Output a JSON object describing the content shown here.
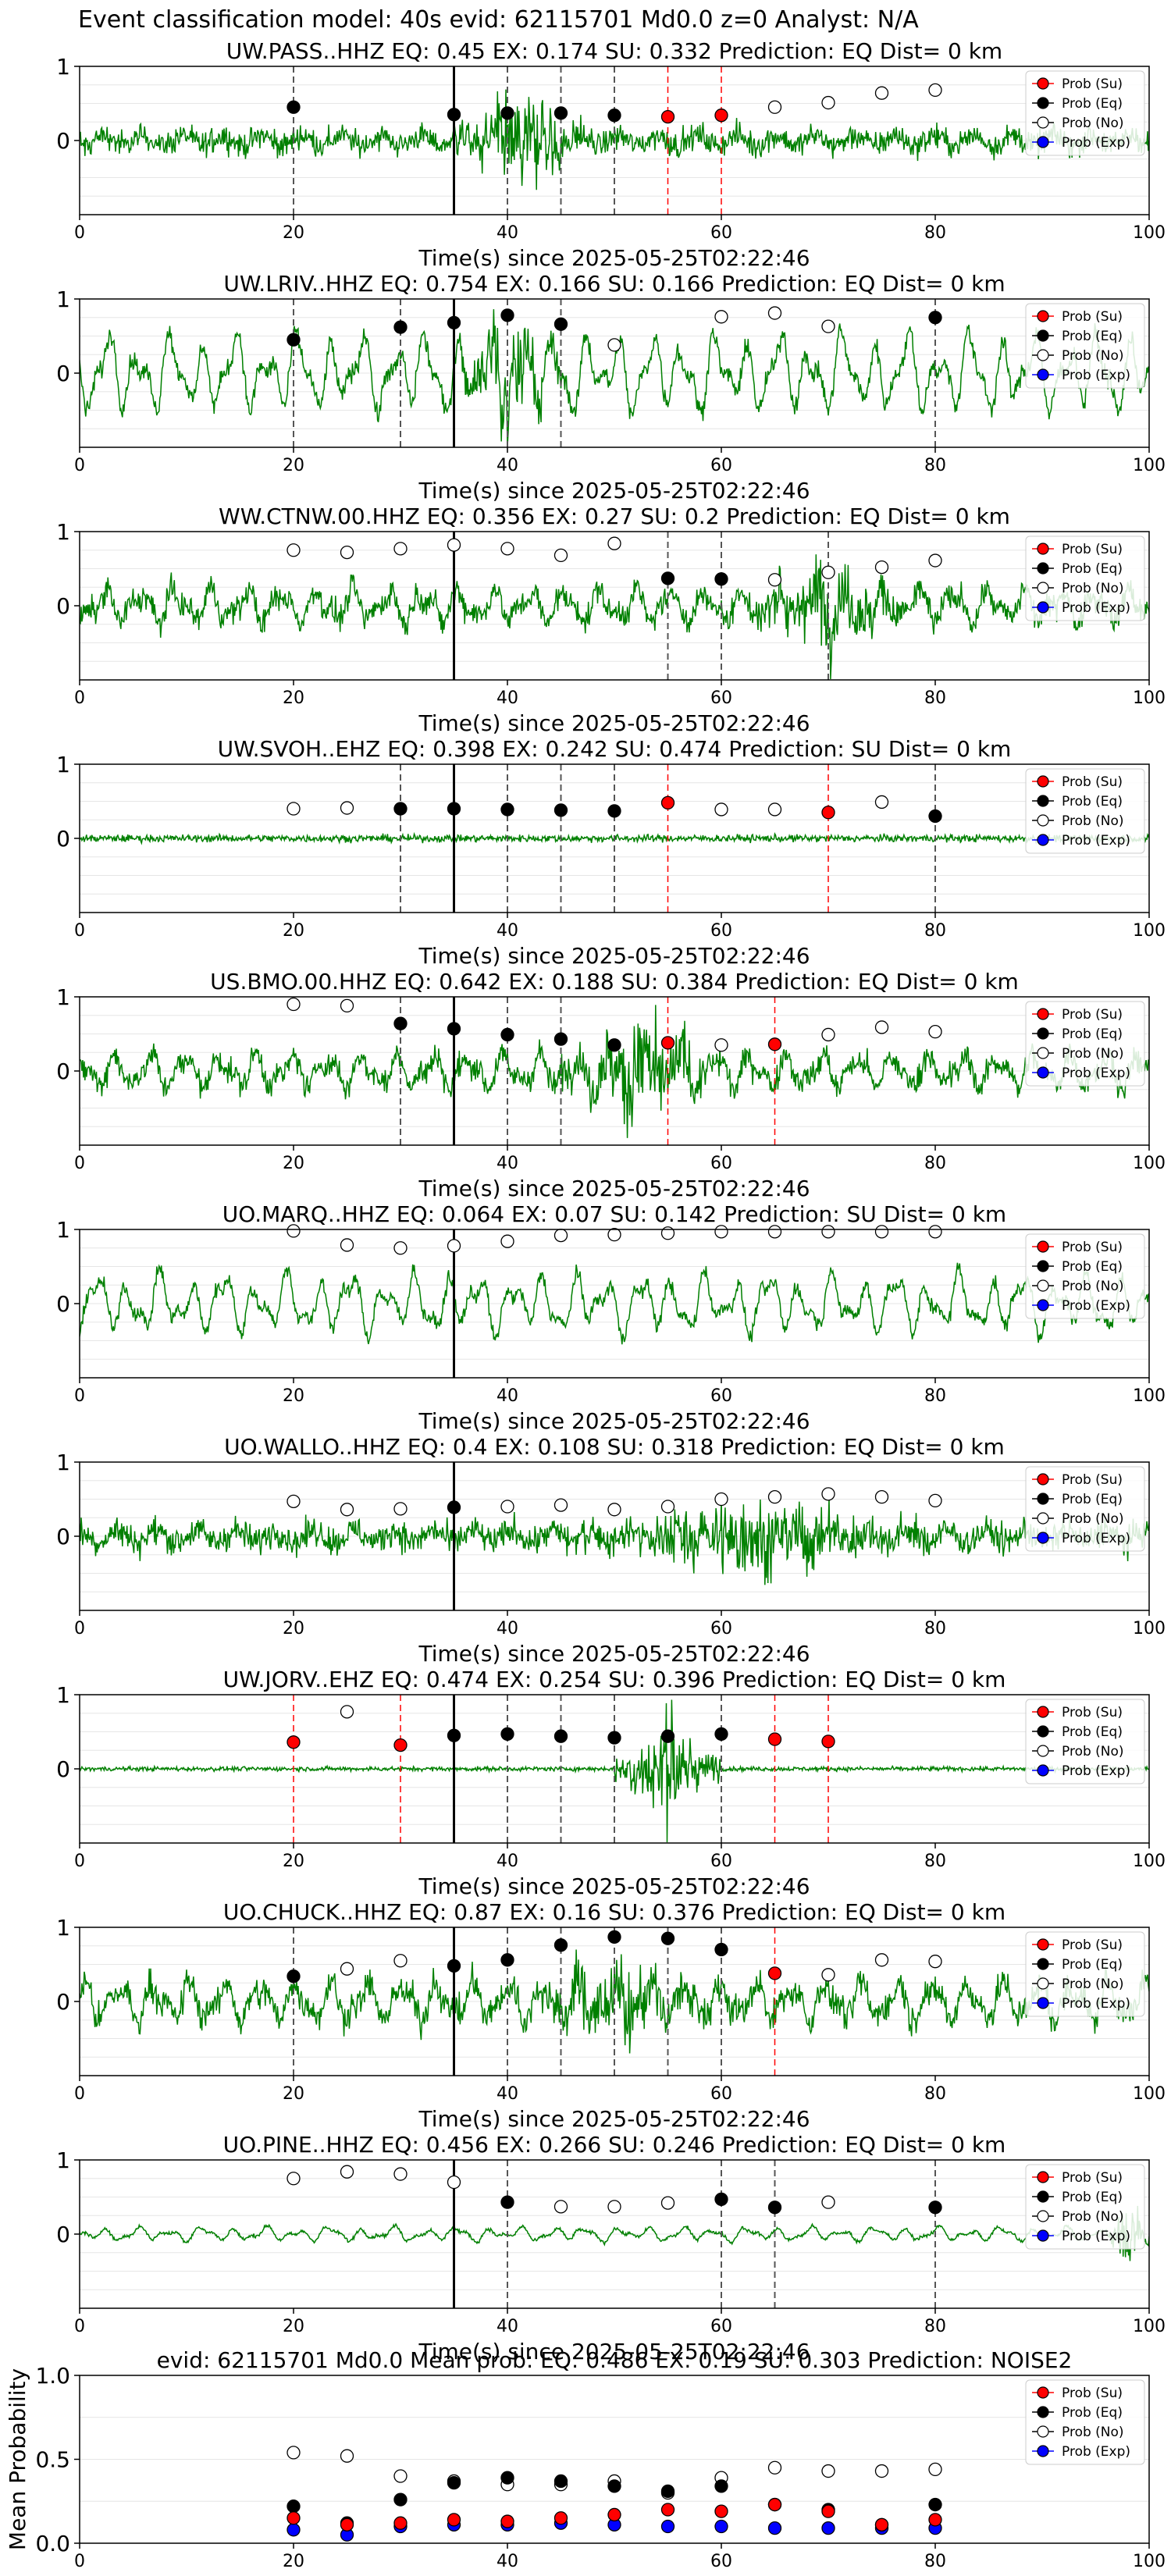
{
  "figure": {
    "title": "Event classification model: 40s evid: 62115701 Md0.0 z=0 Analyst: N/A"
  },
  "legend": {
    "entries": [
      {
        "name": "Prob (Su)",
        "color": "#ff0000",
        "filled": true
      },
      {
        "name": "Prob (Eq)",
        "color": "#000000",
        "filled": true
      },
      {
        "name": "Prob (No)",
        "color": "#ffffff",
        "filled": false
      },
      {
        "name": "Prob (Exp)",
        "color": "#0000ff",
        "filled": true
      }
    ]
  },
  "colors": {
    "waveform": "#008000",
    "su_line": "#ff0000",
    "eq_line": "#555555",
    "origin_line": "#000000"
  },
  "chart_data": [
    {
      "type": "line",
      "title": "UW.PASS..HHZ   EQ: 0.45  EX: 0.174  SU: 0.332   Prediction: EQ    Dist= 0 km",
      "xlabel": "Time(s) since 2025-05-25T02:22:46",
      "xlim": [
        0,
        100
      ],
      "ylim": [
        -1,
        1
      ],
      "xticks": [
        0,
        20,
        40,
        60,
        80,
        100
      ],
      "yticks": [
        0,
        1
      ],
      "legend_position": "top-right",
      "waveform": {
        "style": "noisy",
        "amp": 0.22,
        "burst": [
          35,
          48,
          0.85
        ]
      },
      "origin_time": 35,
      "eq_lines": [
        20,
        40,
        45,
        50
      ],
      "su_lines": [
        55,
        60
      ],
      "eq_points": [
        [
          20,
          0.45
        ],
        [
          35,
          0.35
        ],
        [
          40,
          0.37
        ],
        [
          45,
          0.37
        ],
        [
          50,
          0.34
        ]
      ],
      "su_points": [
        [
          55,
          0.32
        ],
        [
          60,
          0.34
        ]
      ],
      "no_points": [
        [
          65,
          0.45
        ],
        [
          70,
          0.51
        ],
        [
          75,
          0.64
        ],
        [
          80,
          0.68
        ]
      ],
      "exp_points": []
    },
    {
      "type": "line",
      "title": "UW.LRIV..HHZ   EQ: 0.754  EX: 0.166  SU: 0.166   Prediction: EQ    Dist= 0 km",
      "xlabel": "Time(s) since 2025-05-25T02:22:46",
      "xlim": [
        0,
        100
      ],
      "ylim": [
        -1,
        1
      ],
      "xticks": [
        0,
        20,
        40,
        60,
        80,
        100
      ],
      "yticks": [
        0,
        1
      ],
      "legend_position": "top-right",
      "waveform": {
        "style": "smooth",
        "amp": 0.55,
        "burst": [
          35,
          45,
          0.8
        ]
      },
      "origin_time": 35,
      "eq_lines": [
        20,
        30,
        40,
        45,
        80
      ],
      "su_lines": [],
      "eq_points": [
        [
          20,
          0.45
        ],
        [
          30,
          0.62
        ],
        [
          35,
          0.68
        ],
        [
          40,
          0.78
        ],
        [
          45,
          0.66
        ],
        [
          80,
          0.75
        ]
      ],
      "su_points": [],
      "no_points": [
        [
          50,
          0.38
        ],
        [
          60,
          0.76
        ],
        [
          65,
          0.81
        ],
        [
          70,
          0.63
        ]
      ],
      "exp_points": []
    },
    {
      "type": "line",
      "title": "WW.CTNW.00.HHZ   EQ: 0.356  EX: 0.27  SU: 0.2   Prediction: EQ    Dist= 0 km",
      "xlabel": "Time(s) since 2025-05-25T02:22:46",
      "xlim": [
        0,
        100
      ],
      "ylim": [
        -1,
        1
      ],
      "xticks": [
        0,
        20,
        40,
        60,
        80,
        100
      ],
      "yticks": [
        0,
        1
      ],
      "legend_position": "top-right",
      "waveform": {
        "style": "mixed",
        "amp": 0.3,
        "burst": [
          60,
          80,
          0.65
        ]
      },
      "origin_time": 35,
      "eq_lines": [
        55,
        60,
        70
      ],
      "su_lines": [],
      "eq_points": [
        [
          55,
          0.37
        ],
        [
          60,
          0.36
        ]
      ],
      "su_points": [],
      "no_points": [
        [
          20,
          0.75
        ],
        [
          25,
          0.72
        ],
        [
          30,
          0.77
        ],
        [
          35,
          0.82
        ],
        [
          40,
          0.77
        ],
        [
          45,
          0.68
        ],
        [
          50,
          0.84
        ],
        [
          65,
          0.35
        ],
        [
          70,
          0.45
        ],
        [
          75,
          0.52
        ],
        [
          80,
          0.61
        ]
      ],
      "exp_points": []
    },
    {
      "type": "line",
      "title": "UW.SVOH..EHZ   EQ: 0.398  EX: 0.242  SU: 0.474   Prediction: SU    Dist= 0 km",
      "xlabel": "Time(s) since 2025-05-25T02:22:46",
      "xlim": [
        0,
        100
      ],
      "ylim": [
        -1,
        1
      ],
      "xticks": [
        0,
        20,
        40,
        60,
        80,
        100
      ],
      "yticks": [
        0,
        1
      ],
      "legend_position": "top-right",
      "waveform": {
        "style": "quiet",
        "amp": 0.05,
        "burst": [
          0,
          0,
          0
        ]
      },
      "origin_time": 35,
      "eq_lines": [
        30,
        40,
        45,
        50,
        80
      ],
      "su_lines": [
        55,
        70
      ],
      "eq_points": [
        [
          30,
          0.4
        ],
        [
          35,
          0.4
        ],
        [
          40,
          0.39
        ],
        [
          45,
          0.38
        ],
        [
          50,
          0.37
        ],
        [
          80,
          0.3
        ]
      ],
      "su_points": [
        [
          55,
          0.48
        ],
        [
          70,
          0.35
        ]
      ],
      "no_points": [
        [
          20,
          0.4
        ],
        [
          25,
          0.41
        ],
        [
          60,
          0.39
        ],
        [
          65,
          0.39
        ],
        [
          75,
          0.49
        ]
      ],
      "exp_points": []
    },
    {
      "type": "line",
      "title": "US.BMO.00.HHZ   EQ: 0.642  EX: 0.188  SU: 0.384   Prediction: EQ    Dist= 0 km",
      "xlabel": "Time(s) since 2025-05-25T02:22:46",
      "xlim": [
        0,
        100
      ],
      "ylim": [
        -1,
        1
      ],
      "xticks": [
        0,
        20,
        40,
        60,
        80,
        100
      ],
      "yticks": [
        0,
        1
      ],
      "legend_position": "top-right",
      "waveform": {
        "style": "mixed",
        "amp": 0.3,
        "burst": [
          45,
          60,
          0.9
        ]
      },
      "origin_time": 35,
      "eq_lines": [
        30,
        40,
        45
      ],
      "su_lines": [
        55,
        65
      ],
      "eq_points": [
        [
          30,
          0.64
        ],
        [
          35,
          0.57
        ],
        [
          40,
          0.49
        ],
        [
          45,
          0.43
        ],
        [
          50,
          0.35
        ]
      ],
      "su_points": [
        [
          55,
          0.38
        ],
        [
          65,
          0.36
        ]
      ],
      "no_points": [
        [
          20,
          0.9
        ],
        [
          25,
          0.88
        ],
        [
          60,
          0.35
        ],
        [
          70,
          0.49
        ],
        [
          75,
          0.59
        ],
        [
          80,
          0.53
        ]
      ],
      "exp_points": []
    },
    {
      "type": "line",
      "title": "UO.MARQ..HHZ   EQ: 0.064  EX: 0.07  SU: 0.142   Prediction: SU    Dist= 0 km",
      "xlabel": "Time(s) since 2025-05-25T02:22:46",
      "xlim": [
        0,
        100
      ],
      "ylim": [
        -1,
        1
      ],
      "xticks": [
        0,
        20,
        40,
        60,
        80,
        100
      ],
      "yticks": [
        0,
        1
      ],
      "legend_position": "top-right",
      "waveform": {
        "style": "smooth",
        "amp": 0.42,
        "burst": [
          0,
          0,
          0
        ]
      },
      "origin_time": 35,
      "eq_lines": [],
      "su_lines": [],
      "eq_points": [],
      "su_points": [],
      "no_points": [
        [
          20,
          0.98
        ],
        [
          25,
          0.79
        ],
        [
          30,
          0.75
        ],
        [
          35,
          0.78
        ],
        [
          40,
          0.84
        ],
        [
          45,
          0.92
        ],
        [
          50,
          0.93
        ],
        [
          55,
          0.95
        ],
        [
          60,
          0.97
        ],
        [
          65,
          0.97
        ],
        [
          70,
          0.97
        ],
        [
          75,
          0.97
        ],
        [
          80,
          0.97
        ]
      ],
      "exp_points": []
    },
    {
      "type": "line",
      "title": "UO.WALLO..HHZ   EQ: 0.4  EX: 0.108  SU: 0.318   Prediction: EQ    Dist= 0 km",
      "xlabel": "Time(s) since 2025-05-25T02:22:46",
      "xlim": [
        0,
        100
      ],
      "ylim": [
        -1,
        1
      ],
      "xticks": [
        0,
        20,
        40,
        60,
        80,
        100
      ],
      "yticks": [
        0,
        1
      ],
      "legend_position": "top-right",
      "waveform": {
        "style": "noisy",
        "amp": 0.25,
        "burst": [
          45,
          80,
          0.6
        ]
      },
      "origin_time": 35,
      "eq_lines": [],
      "su_lines": [],
      "eq_points": [
        [
          35,
          0.39
        ]
      ],
      "su_points": [],
      "no_points": [
        [
          20,
          0.47
        ],
        [
          25,
          0.36
        ],
        [
          30,
          0.37
        ],
        [
          40,
          0.4
        ],
        [
          45,
          0.42
        ],
        [
          50,
          0.36
        ],
        [
          55,
          0.4
        ],
        [
          60,
          0.5
        ],
        [
          65,
          0.53
        ],
        [
          70,
          0.57
        ],
        [
          75,
          0.53
        ],
        [
          80,
          0.48
        ]
      ],
      "exp_points": []
    },
    {
      "type": "line",
      "title": "UW.JORV..EHZ   EQ: 0.474  EX: 0.254  SU: 0.396   Prediction: EQ    Dist= 0 km",
      "xlabel": "Time(s) since 2025-05-25T02:22:46",
      "xlim": [
        0,
        100
      ],
      "ylim": [
        -1,
        1
      ],
      "xticks": [
        0,
        20,
        40,
        60,
        80,
        100
      ],
      "yticks": [
        0,
        1
      ],
      "legend_position": "top-right",
      "waveform": {
        "style": "quiet",
        "amp": 0.03,
        "burst": [
          50,
          60,
          0.95
        ]
      },
      "origin_time": 35,
      "eq_lines": [
        40,
        45,
        50,
        60
      ],
      "su_lines": [
        20,
        30,
        65,
        70
      ],
      "eq_points": [
        [
          35,
          0.45
        ],
        [
          40,
          0.47
        ],
        [
          45,
          0.44
        ],
        [
          50,
          0.42
        ],
        [
          55,
          0.44
        ],
        [
          60,
          0.47
        ]
      ],
      "su_points": [
        [
          20,
          0.36
        ],
        [
          30,
          0.32
        ],
        [
          65,
          0.4
        ],
        [
          70,
          0.37
        ]
      ],
      "no_points": [
        [
          25,
          0.77
        ]
      ],
      "exp_points": []
    },
    {
      "type": "line",
      "title": "UO.CHUCK..HHZ   EQ: 0.87  EX: 0.16  SU: 0.376   Prediction: EQ    Dist= 0 km",
      "xlabel": "Time(s) since 2025-05-25T02:22:46",
      "xlim": [
        0,
        100
      ],
      "ylim": [
        -1,
        1
      ],
      "xticks": [
        0,
        20,
        40,
        60,
        80,
        100
      ],
      "yticks": [
        0,
        1
      ],
      "legend_position": "top-right",
      "waveform": {
        "style": "mixed",
        "amp": 0.35,
        "burst": [
          40,
          60,
          0.55
        ]
      },
      "origin_time": 35,
      "eq_lines": [
        20,
        40,
        45,
        50,
        55,
        60
      ],
      "su_lines": [
        65
      ],
      "eq_points": [
        [
          20,
          0.34
        ],
        [
          35,
          0.48
        ],
        [
          40,
          0.56
        ],
        [
          45,
          0.76
        ],
        [
          50,
          0.87
        ],
        [
          55,
          0.85
        ],
        [
          60,
          0.7
        ]
      ],
      "su_points": [
        [
          65,
          0.38
        ]
      ],
      "no_points": [
        [
          25,
          0.44
        ],
        [
          30,
          0.55
        ],
        [
          70,
          0.36
        ],
        [
          75,
          0.56
        ],
        [
          80,
          0.54
        ]
      ],
      "exp_points": []
    },
    {
      "type": "line",
      "title": "UO.PINE..HHZ   EQ: 0.456  EX: 0.266  SU: 0.246   Prediction: EQ    Dist= 0 km",
      "xlabel": "Time(s) since 2025-05-25T02:22:46",
      "xlim": [
        0,
        100
      ],
      "ylim": [
        -1,
        1
      ],
      "xticks": [
        0,
        20,
        40,
        60,
        80,
        100
      ],
      "yticks": [
        0,
        1
      ],
      "legend_position": "top-right",
      "waveform": {
        "style": "smooth",
        "amp": 0.1,
        "burst": [
          96,
          100,
          0.6
        ]
      },
      "origin_time": 35,
      "eq_lines": [
        40,
        60,
        65,
        80
      ],
      "su_lines": [],
      "eq_points": [
        [
          40,
          0.43
        ],
        [
          60,
          0.47
        ],
        [
          65,
          0.36
        ],
        [
          80,
          0.36
        ]
      ],
      "su_points": [],
      "no_points": [
        [
          20,
          0.75
        ],
        [
          25,
          0.84
        ],
        [
          30,
          0.81
        ],
        [
          35,
          0.7
        ],
        [
          45,
          0.37
        ],
        [
          50,
          0.37
        ],
        [
          55,
          0.42
        ],
        [
          70,
          0.43
        ]
      ],
      "exp_points": []
    },
    {
      "type": "scatter",
      "title": "evid: 62115701  Md0.0   Mean prob:   EQ: 0.486  EX: 0.19  SU: 0.303   Prediction: NOISE2",
      "xlabel": "",
      "ylabel": "Mean Probability",
      "xlim": [
        0,
        100
      ],
      "ylim": [
        0,
        1
      ],
      "xticks": [
        0,
        20,
        40,
        60,
        80,
        100
      ],
      "yticks": [
        0.0,
        0.5,
        1.0
      ],
      "legend_position": "top-right",
      "eq_points": [
        [
          20,
          0.22
        ],
        [
          25,
          0.12
        ],
        [
          30,
          0.26
        ],
        [
          35,
          0.36
        ],
        [
          40,
          0.39
        ],
        [
          45,
          0.37
        ],
        [
          50,
          0.34
        ],
        [
          55,
          0.31
        ],
        [
          60,
          0.34
        ],
        [
          65,
          0.23
        ],
        [
          70,
          0.2
        ],
        [
          75,
          0.11
        ],
        [
          80,
          0.23
        ]
      ],
      "su_points": [
        [
          20,
          0.15
        ],
        [
          25,
          0.11
        ],
        [
          30,
          0.12
        ],
        [
          35,
          0.14
        ],
        [
          40,
          0.13
        ],
        [
          45,
          0.15
        ],
        [
          50,
          0.17
        ],
        [
          55,
          0.2
        ],
        [
          60,
          0.19
        ],
        [
          65,
          0.23
        ],
        [
          70,
          0.19
        ],
        [
          75,
          0.11
        ],
        [
          80,
          0.14
        ]
      ],
      "no_points": [
        [
          20,
          0.54
        ],
        [
          25,
          0.52
        ],
        [
          30,
          0.4
        ],
        [
          35,
          0.37
        ],
        [
          40,
          0.35
        ],
        [
          45,
          0.35
        ],
        [
          50,
          0.37
        ],
        [
          55,
          0.3
        ],
        [
          60,
          0.39
        ],
        [
          65,
          0.45
        ],
        [
          70,
          0.43
        ],
        [
          75,
          0.43
        ],
        [
          80,
          0.44
        ]
      ],
      "exp_points": [
        [
          20,
          0.08
        ],
        [
          25,
          0.05
        ],
        [
          30,
          0.1
        ],
        [
          35,
          0.11
        ],
        [
          40,
          0.11
        ],
        [
          45,
          0.12
        ],
        [
          50,
          0.11
        ],
        [
          55,
          0.1
        ],
        [
          60,
          0.1
        ],
        [
          65,
          0.09
        ],
        [
          70,
          0.09
        ],
        [
          75,
          0.09
        ],
        [
          80,
          0.09
        ]
      ]
    }
  ]
}
